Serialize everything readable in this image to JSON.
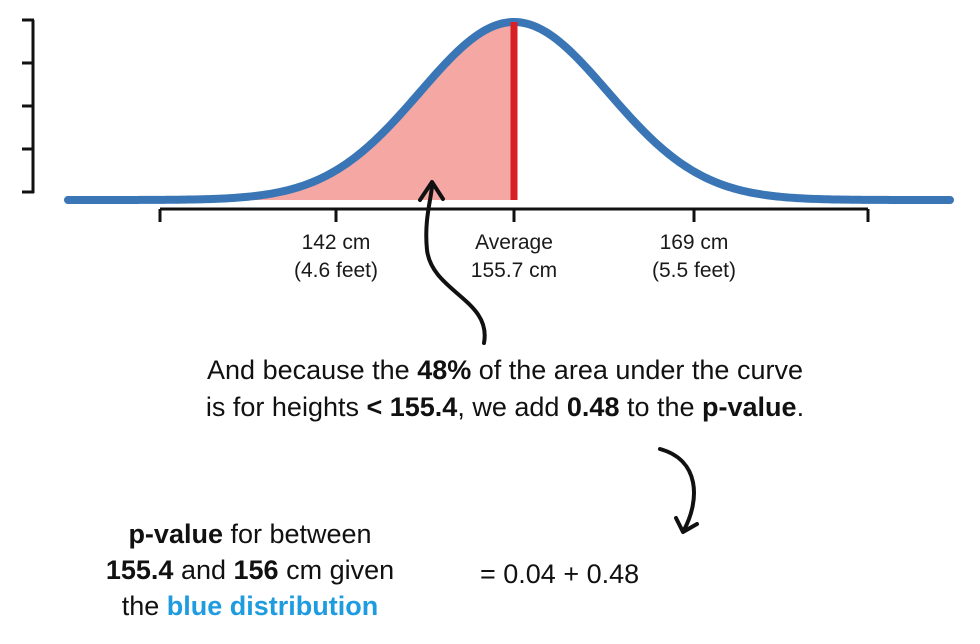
{
  "ticks": [
    {
      "line1": "142 cm",
      "line2": "(4.6 feet)"
    },
    {
      "line1": "Average",
      "line2": "155.7 cm"
    },
    {
      "line1": "169 cm",
      "line2": "(5.5 feet)"
    }
  ],
  "explanation": {
    "p1": "And because the ",
    "b1": "48%",
    "p2": " of the area under the curve is for heights ",
    "b2": "< 155.4",
    "p3": ", we add ",
    "b3": "0.48",
    "p4": " to the ",
    "b4": "p-value",
    "p5": "."
  },
  "pvalue": {
    "b1": "p-value",
    "t1": " for between",
    "b2": "155.4",
    "t2": " and ",
    "b3": "156",
    "t3": " cm given",
    "t4": "the ",
    "blue": "blue distribution",
    "equation": "= 0.04 + 0.48"
  },
  "colors": {
    "curve": "#3a76b5",
    "shade": "#f4a7a3",
    "mean_line": "#d81f26",
    "highlight": "#1f9be0"
  }
}
